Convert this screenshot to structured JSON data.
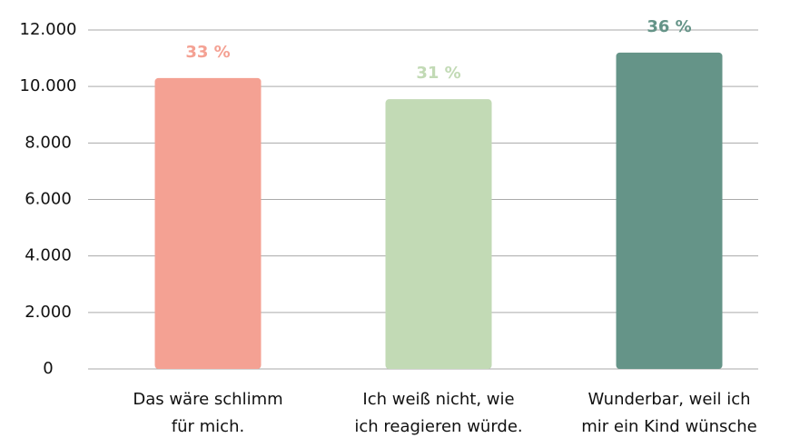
{
  "chart_data": {
    "type": "bar",
    "categories": [
      [
        "Das wäre schlimm",
        "für mich."
      ],
      [
        "Ich weiß nicht, wie",
        "ich reagieren würde."
      ],
      [
        "Wunderbar, weil ich",
        "mir ein Kind wünsche"
      ]
    ],
    "values": [
      10300,
      9550,
      11200
    ],
    "annotations": [
      "33 %",
      "31 %",
      "36 %"
    ],
    "colors": [
      "#f4a193",
      "#c2dab5",
      "#659488"
    ],
    "ylim": [
      0,
      12000
    ],
    "yticks": [
      0,
      {
        "value": 2000,
        "label": "2.000"
      },
      {
        "value": 4000,
        "label": "4.000"
      },
      {
        "value": 6000,
        "label": "6.000"
      },
      {
        "value": 8000,
        "label": "8.000"
      },
      {
        "value": 10000,
        "label": "10.000"
      },
      {
        "value": 12000,
        "label": "12.000"
      }
    ],
    "grid": true
  }
}
